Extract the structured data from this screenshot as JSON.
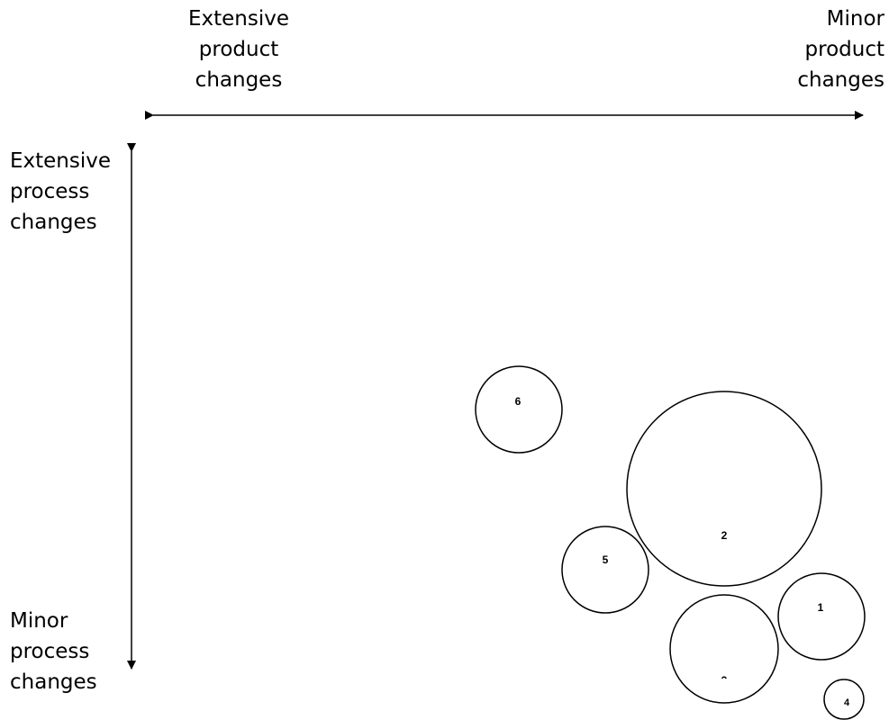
{
  "x_axis": {
    "left_label": "Extensive\nproduct\nchanges",
    "right_label": "Minor\nproduct\nchanges"
  },
  "y_axis": {
    "top_label": "Extensive\nprocess\nchanges",
    "bottom_label": "Minor\nprocess\nchanges"
  },
  "bubbles": [
    {
      "id": "6",
      "label": "6"
    },
    {
      "id": "2",
      "label": "2"
    },
    {
      "id": "5",
      "label": "5"
    },
    {
      "id": "1",
      "label": "1"
    },
    {
      "id": "3",
      "label": "3"
    },
    {
      "id": "4",
      "label": "4"
    }
  ]
}
